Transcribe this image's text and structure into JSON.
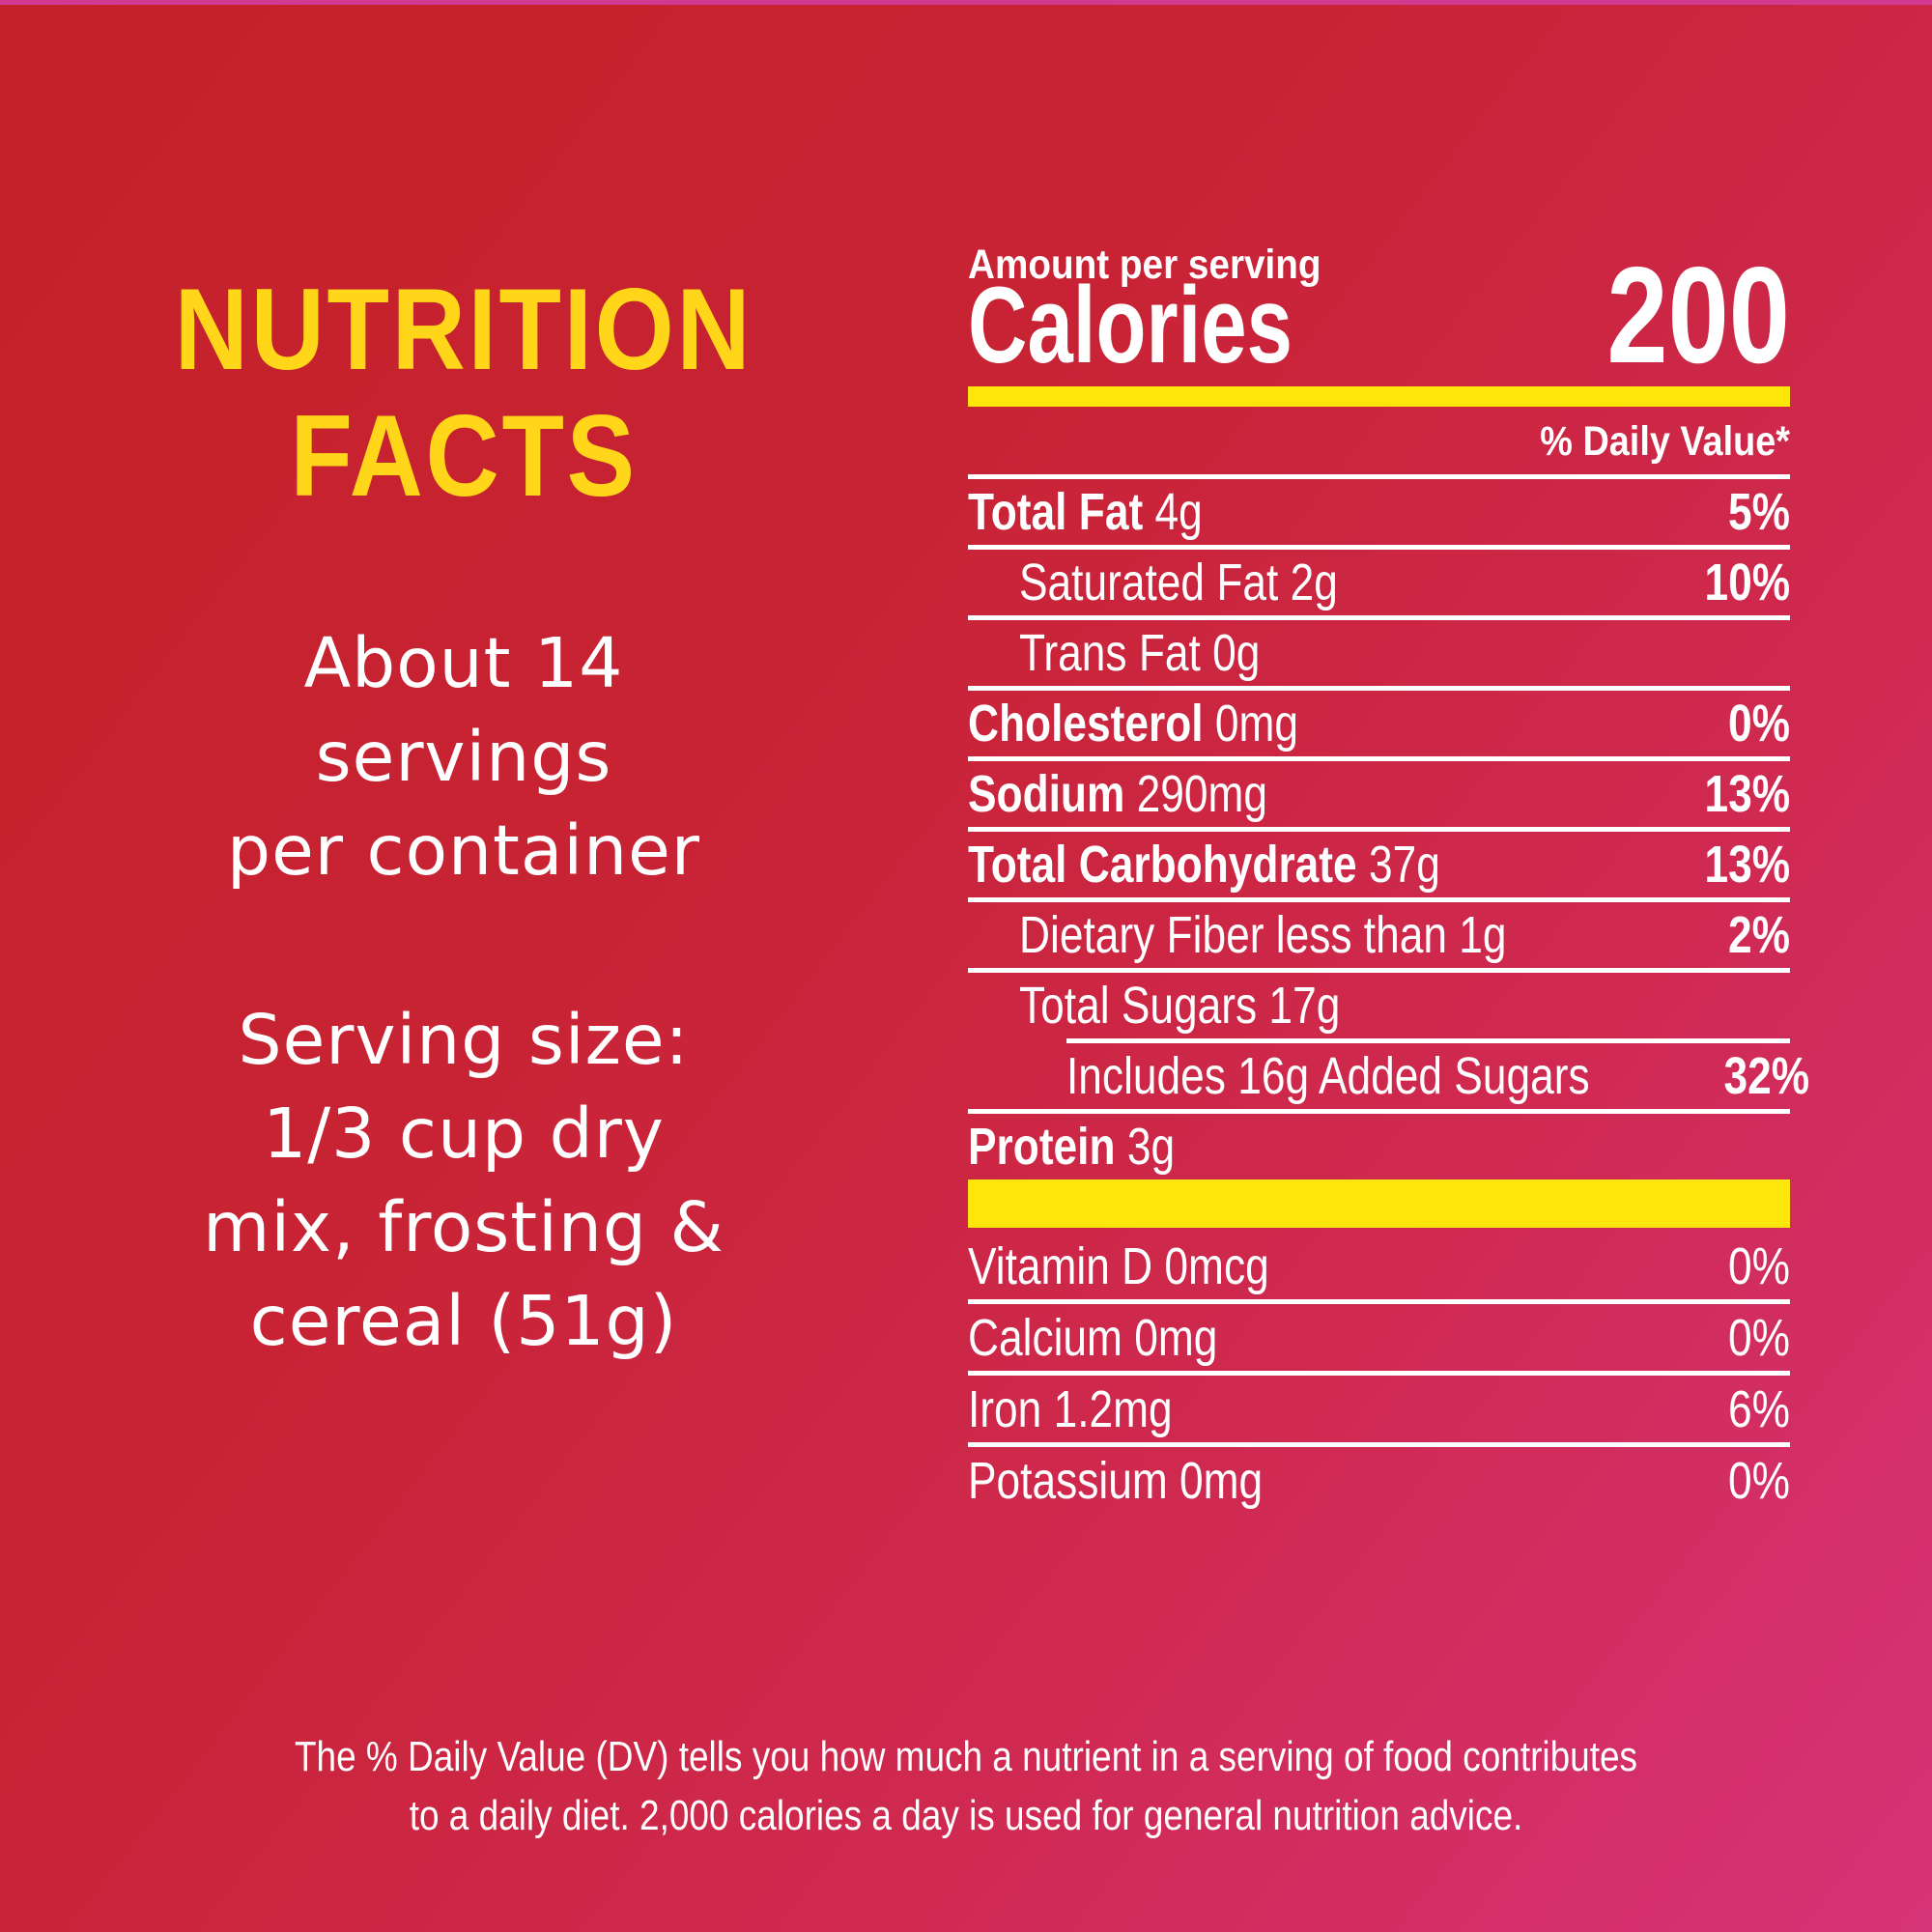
{
  "colors": {
    "background_top_left": "#c32129",
    "background_bottom_right": "#d73378",
    "top_strip": "#d23a92",
    "bar_yellow": "#ffe60a",
    "title_yellow": "#ffd619",
    "text_white": "#ffffff"
  },
  "left_panel": {
    "title_line1": "NUTRITION",
    "title_line2": "FACTS",
    "servings_lines": [
      "About 14",
      "servings",
      "per container"
    ],
    "serving_size_lines": [
      "Serving size:",
      "1/3 cup dry",
      "mix, frosting &",
      "cereal (51g)"
    ]
  },
  "label": {
    "amount_per_serving": "Amount per serving",
    "calories_word": "Calories",
    "calories_value": "200",
    "daily_value_header": "% Daily Value*",
    "rows": [
      {
        "key": "total-fat",
        "bold": "Total Fat",
        "rest": "4g",
        "pct": "5%",
        "pct_bold": true,
        "indent": 0,
        "rule": "full"
      },
      {
        "key": "saturated-fat",
        "bold": "",
        "rest": "Saturated Fat 2g",
        "pct": "10%",
        "pct_bold": true,
        "indent": 1,
        "rule": "full"
      },
      {
        "key": "trans-fat",
        "bold": "",
        "rest": "Trans Fat 0g",
        "pct": "",
        "pct_bold": false,
        "indent": 1,
        "rule": "full"
      },
      {
        "key": "cholesterol",
        "bold": "Cholesterol",
        "rest": "0mg",
        "pct": "0%",
        "pct_bold": true,
        "indent": 0,
        "rule": "full"
      },
      {
        "key": "sodium",
        "bold": "Sodium",
        "rest": "290mg",
        "pct": "13%",
        "pct_bold": true,
        "indent": 0,
        "rule": "full"
      },
      {
        "key": "total-carbohydrate",
        "bold": "Total Carbohydrate",
        "rest": "37g",
        "pct": "13%",
        "pct_bold": true,
        "indent": 0,
        "rule": "full"
      },
      {
        "key": "dietary-fiber",
        "bold": "",
        "rest": "Dietary Fiber less than 1g",
        "pct": "2%",
        "pct_bold": true,
        "indent": 1,
        "rule": "full"
      },
      {
        "key": "total-sugars",
        "bold": "",
        "rest": "Total Sugars 17g",
        "pct": "",
        "pct_bold": false,
        "indent": 1,
        "rule": "full"
      },
      {
        "key": "added-sugars",
        "bold": "",
        "rest": "Includes 16g Added Sugars",
        "pct": "32%",
        "pct_bold": true,
        "indent": 2,
        "rule": "indent2"
      },
      {
        "key": "protein",
        "bold": "Protein",
        "rest": "3g",
        "pct": "",
        "pct_bold": false,
        "indent": 0,
        "rule": "full"
      }
    ],
    "vitamin_rows": [
      {
        "key": "vitamin-d",
        "text": "Vitamin D 0mcg",
        "pct": "0%",
        "rule": false
      },
      {
        "key": "calcium",
        "text": "Calcium 0mg",
        "pct": "0%",
        "rule": true
      },
      {
        "key": "iron",
        "text": "Iron 1.2mg",
        "pct": "6%",
        "rule": true
      },
      {
        "key": "potassium",
        "text": "Potassium 0mg",
        "pct": "0%",
        "rule": true
      }
    ]
  },
  "footnote_lines": [
    "The % Daily Value (DV) tells you how much a nutrient in a serving of food contributes",
    "to a daily diet. 2,000 calories a day is used for general nutrition advice."
  ]
}
